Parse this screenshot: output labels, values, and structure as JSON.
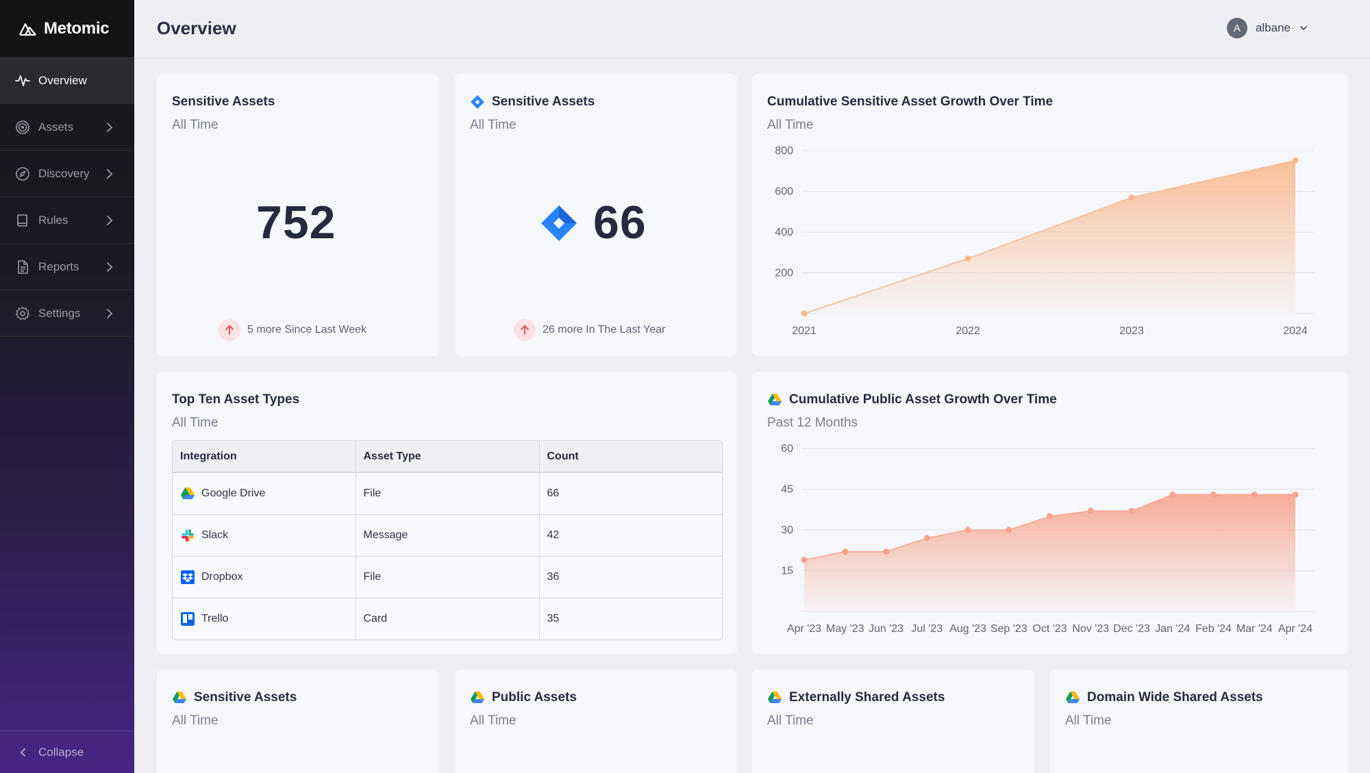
{
  "app": {
    "name": "Metomic"
  },
  "sidebar": {
    "items": [
      {
        "label": "Overview",
        "icon": "activity-icon"
      },
      {
        "label": "Assets",
        "icon": "target-icon"
      },
      {
        "label": "Discovery",
        "icon": "compass-icon"
      },
      {
        "label": "Rules",
        "icon": "book-icon"
      },
      {
        "label": "Reports",
        "icon": "document-icon"
      },
      {
        "label": "Settings",
        "icon": "gear-icon"
      }
    ],
    "collapse_label": "Collapse"
  },
  "header": {
    "title": "Overview",
    "user": {
      "initial": "A",
      "name": "albane"
    }
  },
  "cards": {
    "sensitive_all": {
      "title": "Sensitive Assets",
      "subtitle": "All Time",
      "value": "752",
      "trend": "5 more Since Last Week"
    },
    "sensitive_jira": {
      "title": "Sensitive Assets",
      "subtitle": "All Time",
      "value": "66",
      "trend": "26 more In The Last Year",
      "icon": "jira-icon"
    },
    "top_types": {
      "title": "Top Ten Asset Types",
      "subtitle": "All Time",
      "columns": [
        "Integration",
        "Asset Type",
        "Count"
      ],
      "rows": [
        {
          "integration": "Google Drive",
          "type": "File",
          "count": "66",
          "icon": "google-drive-icon"
        },
        {
          "integration": "Slack",
          "type": "Message",
          "count": "42",
          "icon": "slack-icon"
        },
        {
          "integration": "Dropbox",
          "type": "File",
          "count": "36",
          "icon": "dropbox-icon"
        },
        {
          "integration": "Trello",
          "type": "Card",
          "count": "35",
          "icon": "trello-icon"
        }
      ]
    },
    "bottom": [
      {
        "title": "Sensitive Assets",
        "subtitle": "All Time"
      },
      {
        "title": "Public Assets",
        "subtitle": "All Time"
      },
      {
        "title": "Externally Shared Assets",
        "subtitle": "All Time"
      },
      {
        "title": "Domain Wide Shared Assets",
        "subtitle": "All Time"
      }
    ]
  },
  "chart_data": [
    {
      "type": "area",
      "title": "Cumulative Sensitive Asset Growth Over Time",
      "subtitle": "All Time",
      "categories": [
        "2021",
        "2022",
        "2023",
        "2024"
      ],
      "values": [
        0,
        270,
        570,
        752
      ],
      "ylim": [
        0,
        800
      ],
      "yticks": [
        200,
        400,
        600,
        800
      ],
      "grid": true,
      "color": "#f9b98e"
    },
    {
      "type": "area",
      "title": "Cumulative Public Asset Growth Over Time",
      "subtitle": "Past 12 Months",
      "categories": [
        "Apr '23",
        "May '23",
        "Jun '23",
        "Jul '23",
        "Aug '23",
        "Sep '23",
        "Oct '23",
        "Nov '23",
        "Dec '23",
        "Jan '24",
        "Feb '24",
        "Mar '24",
        "Apr '24"
      ],
      "values": [
        19,
        22,
        22,
        27,
        30,
        30,
        35,
        37,
        37,
        43,
        43,
        43,
        43
      ],
      "ylim": [
        0,
        60
      ],
      "yticks": [
        15,
        30,
        45,
        60
      ],
      "grid": true,
      "color": "#f7a58c"
    }
  ]
}
